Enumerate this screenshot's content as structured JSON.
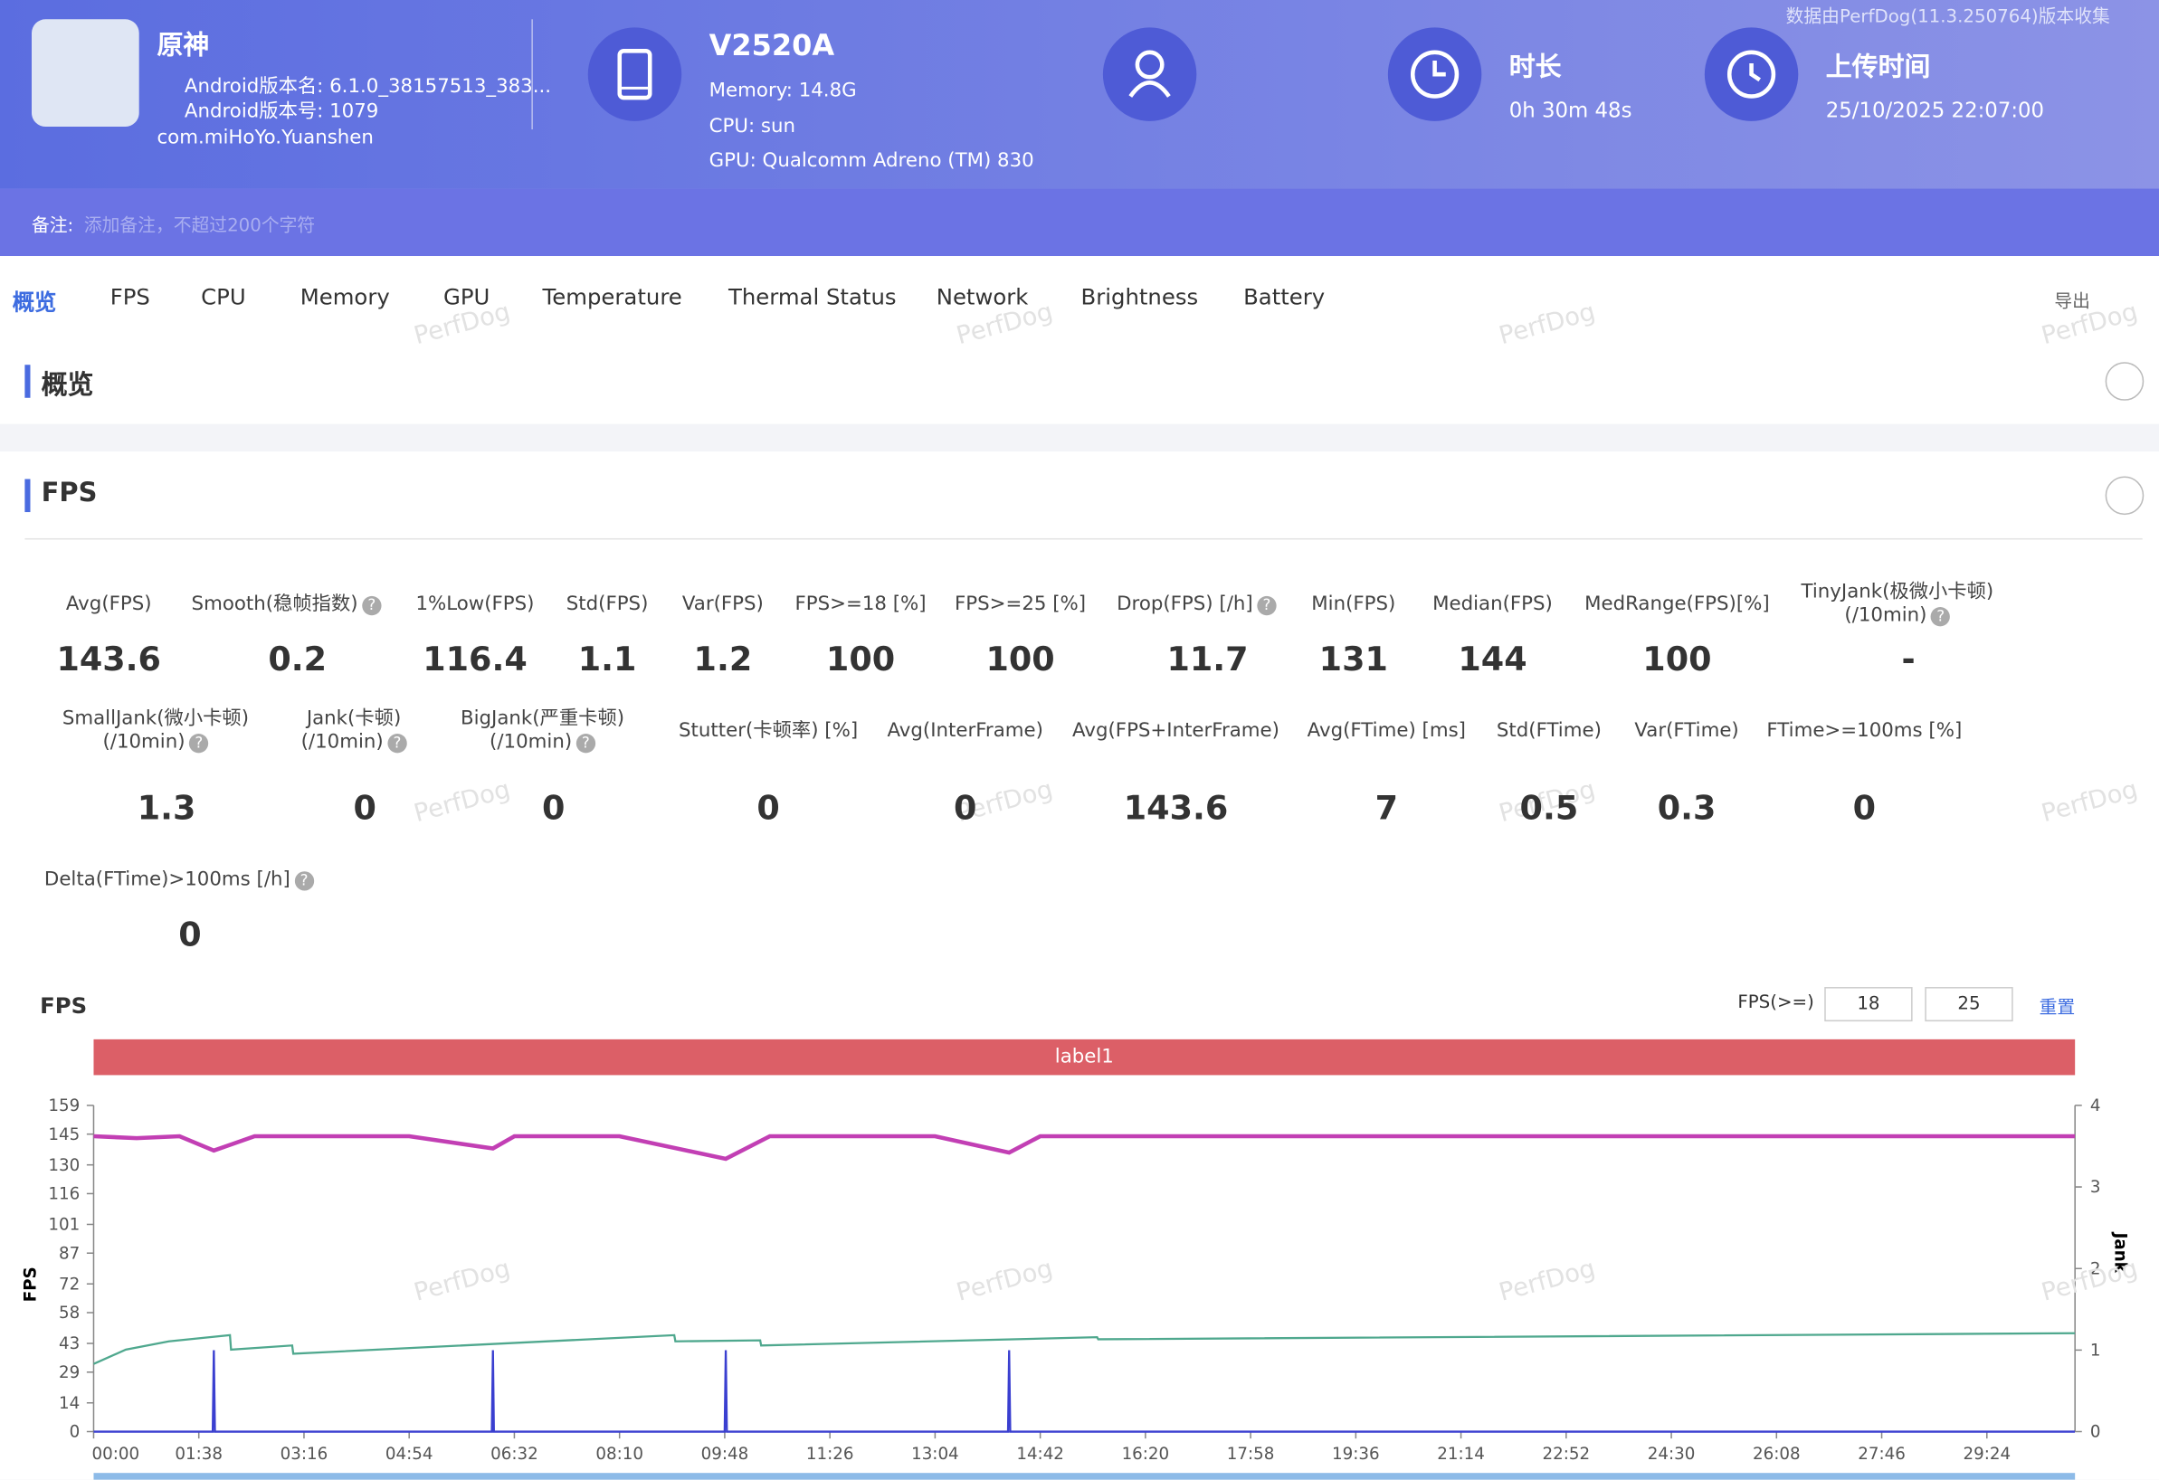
{
  "header": {
    "app_name": "原神",
    "version_name": "Android版本名: 6.1.0_38157513_383...",
    "version_code": "Android版本号: 1079",
    "package": "com.miHoYo.Yuanshen",
    "device": "V2520A",
    "memory": "Memory: 14.8G",
    "cpu": "CPU: sun",
    "gpu": "GPU: Qualcomm Adreno (TM) 830",
    "duration_label": "时长",
    "duration": "0h 30m 48s",
    "upload_label": "上传时间",
    "upload_time": "25/10/2025 22:07:00",
    "notice": "数据由PerfDog(11.3.250764)版本收集",
    "remark_label": "备注:",
    "remark_placeholder": "添加备注，不超过200个字符"
  },
  "tabs": [
    "概览",
    "FPS",
    "CPU",
    "Memory",
    "GPU",
    "Temperature",
    "Thermal Status",
    "Network",
    "Brightness",
    "Battery"
  ],
  "export": "导出",
  "watermark": "PerfDog",
  "sections": {
    "overview": "概览",
    "fps": "FPS"
  },
  "metrics": [
    [
      {
        "label": "Avg(FPS)",
        "value": 143.6
      },
      {
        "label": "Smooth(稳帧指数)",
        "value": 0.2,
        "help": true
      },
      {
        "label": "1%Low(FPS)",
        "value": 116.4
      },
      {
        "label": "Std(FPS)",
        "value": 1.1
      },
      {
        "label": "Var(FPS)",
        "value": 1.2
      },
      {
        "label": "FPS>=18 [%]",
        "value": 100
      },
      {
        "label": "FPS>=25 [%]",
        "value": 100
      },
      {
        "label": "Drop(FPS) [/h]",
        "value": 11.7,
        "help": true
      },
      {
        "label": "Min(FPS)",
        "value": 131
      },
      {
        "label": "Median(FPS)",
        "value": 144
      },
      {
        "label": "MedRange(FPS)[%]",
        "value": 100
      },
      {
        "label": "TinyJank(极微小卡顿)\n(/10min)",
        "value": "-",
        "help": true
      }
    ],
    [
      {
        "label": "SmallJank(微小卡顿)\n(/10min)",
        "value": 1.3,
        "help": true
      },
      {
        "label": "Jank(卡顿)\n(/10min)",
        "value": 0,
        "help": true
      },
      {
        "label": "BigJank(严重卡顿)\n(/10min)",
        "value": 0,
        "help": true
      },
      {
        "label": "Stutter(卡顿率) [%]",
        "value": 0
      },
      {
        "label": "Avg(InterFrame)",
        "value": 0
      },
      {
        "label": "Avg(FPS+InterFrame)",
        "value": 143.6
      },
      {
        "label": "Avg(FTime) [ms]",
        "value": 7
      },
      {
        "label": "Std(FTime)",
        "value": 0.5
      },
      {
        "label": "Var(FTime)",
        "value": 0.3
      },
      {
        "label": "FTime>=100ms [%]",
        "value": 0
      }
    ],
    [
      {
        "label": "Delta(FTime)>100ms [/h]",
        "value": 0,
        "help": true
      }
    ]
  ],
  "fps_chart": {
    "type": "line",
    "title": "FPS",
    "threshold_label": "FPS(>=)",
    "thresholds": [
      18,
      25
    ],
    "reset": "重置",
    "band_label": "label1",
    "ylabel": "FPS",
    "y2label": "Jank",
    "ylim": [
      0,
      159
    ],
    "yticks": [
      0,
      14,
      29,
      43,
      58,
      72,
      87,
      101,
      116,
      130,
      145,
      159
    ],
    "y2lim": [
      0,
      4
    ],
    "y2ticks": [
      0,
      1,
      2,
      3,
      4
    ],
    "xticks": [
      "00:00",
      "01:38",
      "03:16",
      "04:54",
      "06:32",
      "08:10",
      "09:48",
      "11:26",
      "13:04",
      "14:42",
      "16:20",
      "17:58",
      "19:36",
      "21:14",
      "22:52",
      "24:30",
      "26:08",
      "27:46",
      "29:24"
    ],
    "series": [
      {
        "color": "#c23fb4",
        "x": [
          "00:00",
          "00:40",
          "01:20",
          "01:52",
          "02:30",
          "03:16",
          "04:54",
          "06:12",
          "06:32",
          "08:10",
          "09:49",
          "10:30",
          "11:26",
          "13:04",
          "14:13",
          "14:42",
          "16:20",
          "17:58",
          "19:36",
          "21:14",
          "22:52",
          "24:30",
          "26:08",
          "27:46",
          "29:24",
          "30:46"
        ],
        "values": [
          144,
          143,
          144,
          137,
          144,
          144,
          144,
          138,
          144,
          144,
          133,
          144,
          144,
          144,
          136,
          144,
          144,
          144,
          144,
          144,
          144,
          144,
          144,
          144,
          144,
          144
        ]
      },
      {
        "color": "#4fa88e",
        "x": [
          "00:00",
          "00:30",
          "01:10",
          "02:07",
          "02:08",
          "03:05",
          "03:06",
          "09:01",
          "09:02",
          "10:21",
          "10:22",
          "15:35",
          "15:36",
          "30:46"
        ],
        "values": [
          33,
          40,
          44,
          47,
          40,
          42,
          38,
          47,
          44,
          44.5,
          42,
          46,
          45,
          48
        ]
      },
      {
        "color": "#3a3fd0",
        "axis": "y2",
        "x": [
          "00:00",
          "01:51",
          "01:52",
          "01:53",
          "06:11",
          "06:12",
          "06:13",
          "09:48",
          "09:49",
          "09:50",
          "14:12",
          "14:13",
          "14:14",
          "30:46"
        ],
        "values": [
          0,
          0,
          1,
          0,
          0,
          1,
          0,
          0,
          1,
          0,
          0,
          1,
          0,
          0
        ]
      }
    ]
  }
}
